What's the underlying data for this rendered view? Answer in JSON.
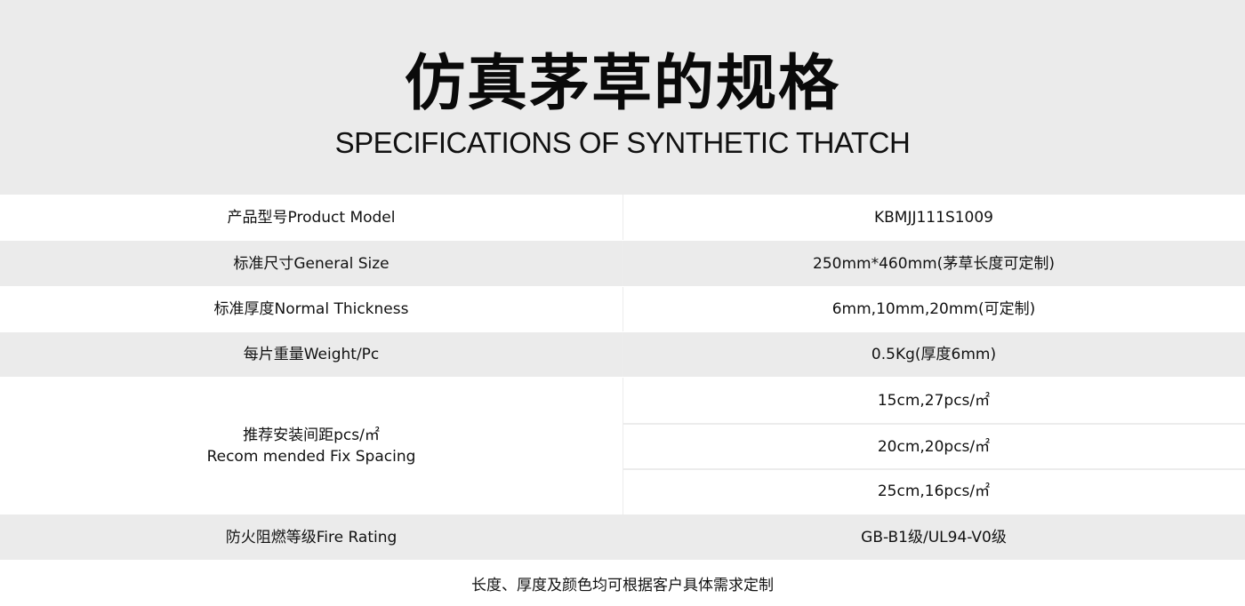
{
  "header": {
    "title_cn": "仿真茅草的规格",
    "title_en": "SPECIFICATIONS OF SYNTHETIC THATCH"
  },
  "table": {
    "rows": [
      {
        "label": "产品型号Product Model",
        "value": "KBMJJ111S1009"
      },
      {
        "label": "标准尺寸General Size",
        "value": "250mm*460mm(茅草长度可定制)"
      },
      {
        "label": "标准厚度Normal Thickness",
        "value": "6mm,10mm,20mm(可定制)"
      },
      {
        "label": "每片重量Weight/Pc",
        "value": "0.5Kg(厚度6mm)"
      }
    ],
    "spacing": {
      "label_line1": "推荐安装间距pcs/㎡",
      "label_line2": "Recom mended Fix Spacing",
      "values": [
        "15cm,27pcs/㎡",
        "20cm,20pcs/㎡",
        "25cm,16pcs/㎡"
      ]
    },
    "fire": {
      "label": "防火阻燃等级Fire Rating",
      "value": "GB-B1级/UL94-V0级"
    }
  },
  "footer": {
    "note": "长度、厚度及颜色均可根据客户具体需求定制"
  }
}
